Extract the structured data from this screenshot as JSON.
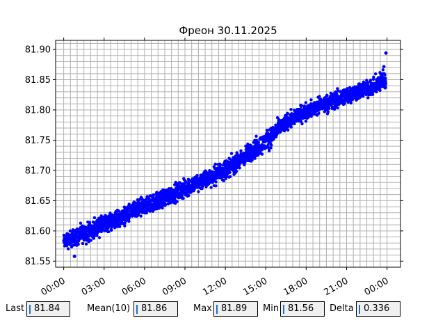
{
  "chart_data": {
    "type": "scatter",
    "title": "Фреон 30.11.2025",
    "xlabel": "",
    "ylabel": "",
    "x_tick_labels": [
      "00:00",
      "03:00",
      "06:00",
      "09:00",
      "12:00",
      "15:00",
      "18:00",
      "21:00",
      "00:00"
    ],
    "x_tick_hours": [
      0,
      3,
      6,
      9,
      12,
      15,
      18,
      21,
      24
    ],
    "xlim_hours": [
      -0.6,
      25.0
    ],
    "y_tick_labels": [
      "81.55",
      "81.60",
      "81.65",
      "81.70",
      "81.75",
      "81.80",
      "81.85",
      "81.90"
    ],
    "y_ticks": [
      81.55,
      81.6,
      81.65,
      81.7,
      81.75,
      81.8,
      81.85,
      81.9
    ],
    "ylim": [
      81.54,
      81.915
    ],
    "grid": true,
    "series": [
      {
        "color": "#0000ff",
        "marker": "dot",
        "x_hours": [
          0,
          1,
          2,
          3,
          4,
          5,
          6,
          7,
          8,
          9,
          10,
          11,
          12,
          13,
          14,
          15,
          16,
          17,
          18,
          19,
          20,
          21,
          22,
          23,
          23.9
        ],
        "y_mean": [
          81.585,
          81.595,
          81.603,
          81.612,
          81.622,
          81.632,
          81.642,
          81.65,
          81.66,
          81.668,
          81.68,
          81.692,
          81.703,
          81.716,
          81.73,
          81.748,
          81.768,
          81.785,
          81.797,
          81.805,
          81.812,
          81.82,
          81.828,
          81.835,
          81.84
        ],
        "y_min": [
          81.56,
          81.565,
          81.575,
          81.585,
          81.595,
          81.605,
          81.615,
          81.625,
          81.635,
          81.645,
          81.655,
          81.665,
          81.675,
          81.69,
          81.705,
          81.72,
          81.745,
          81.765,
          81.775,
          81.785,
          81.79,
          81.8,
          81.81,
          81.815,
          81.82
        ],
        "y_max": [
          81.605,
          81.615,
          81.625,
          81.635,
          81.645,
          81.655,
          81.665,
          81.675,
          81.685,
          81.695,
          81.705,
          81.715,
          81.728,
          81.74,
          81.76,
          81.775,
          81.795,
          81.81,
          81.82,
          81.83,
          81.84,
          81.85,
          81.855,
          81.86,
          81.895
        ]
      }
    ]
  },
  "stats": [
    {
      "label": "Last",
      "value": "81.84"
    },
    {
      "label": "Mean(10)",
      "value": "81.86"
    },
    {
      "label": "Max",
      "value": "81.89"
    },
    {
      "label": "Min",
      "value": "81.56"
    },
    {
      "label": "Delta",
      "value": "0.336"
    }
  ]
}
